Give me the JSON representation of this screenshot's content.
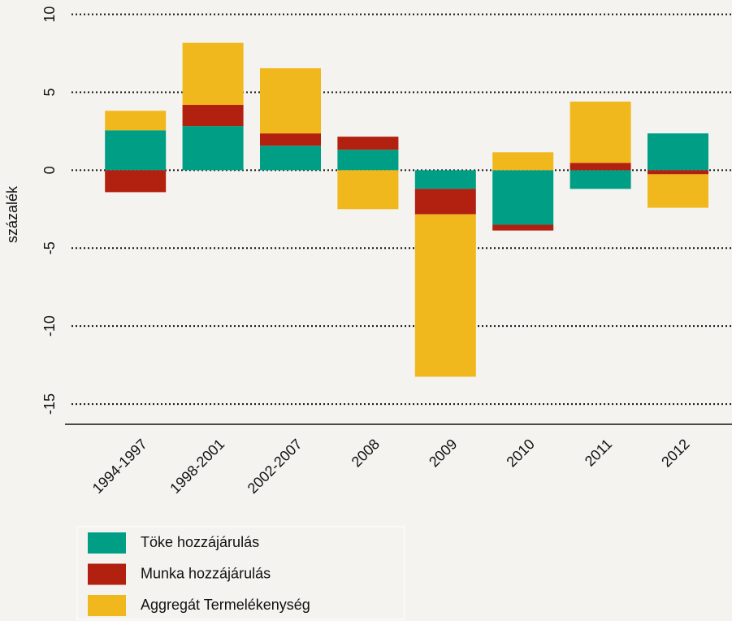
{
  "chart_data": {
    "type": "bar",
    "stacked": true,
    "y_label": "százalék",
    "categories": [
      "1994-1997",
      "1998-2001",
      "2002-2007",
      "2008",
      "2009",
      "2010",
      "2011",
      "2012"
    ],
    "series": [
      {
        "name": "Töke hozzájárulás",
        "color": "#009e85",
        "values": [
          2.56,
          2.83,
          1.57,
          1.31,
          -1.2,
          -3.5,
          -1.2,
          2.36
        ]
      },
      {
        "name": "Munka hozzájárulás",
        "color": "#b22010",
        "values": [
          -1.41,
          1.36,
          0.79,
          0.84,
          -1.63,
          -0.37,
          0.47,
          -0.26
        ]
      },
      {
        "name": "Aggregát Termelékenység",
        "color": "#f0b81c",
        "values": [
          1.25,
          3.98,
          4.18,
          -2.5,
          -10.42,
          1.15,
          3.93,
          -2.15
        ]
      }
    ],
    "ylim": [
      -16.3,
      10.5
    ],
    "yticks": [
      10,
      5,
      0,
      -5,
      -10,
      -15
    ],
    "grid": true
  }
}
